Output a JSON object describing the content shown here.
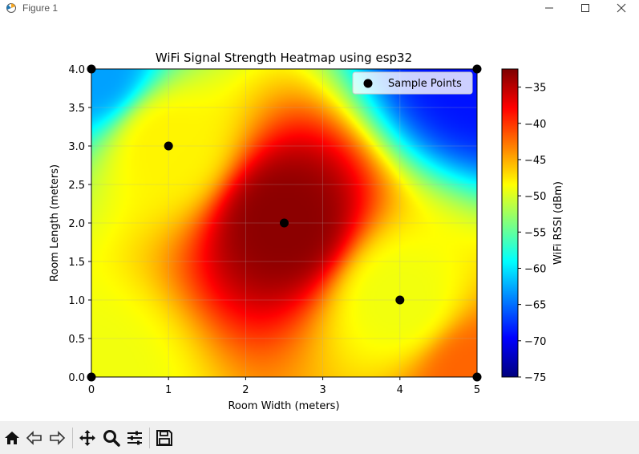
{
  "window": {
    "title": "Figure 1"
  },
  "toolbar": {
    "items": [
      "home-icon",
      "back-icon",
      "forward-icon",
      "pan-icon",
      "zoom-icon",
      "configure-subplots-icon",
      "save-icon"
    ]
  },
  "chart_data": {
    "type": "heatmap",
    "title": "WiFi Signal Strength Heatmap using esp32",
    "xlabel": "Room Width (meters)",
    "ylabel": "Room Length (meters)",
    "xlim": [
      0,
      5
    ],
    "ylim": [
      0,
      4
    ],
    "xticks": [
      "0",
      "1",
      "2",
      "3",
      "4",
      "5"
    ],
    "yticks": [
      "0.0",
      "0.5",
      "1.0",
      "1.5",
      "2.0",
      "2.5",
      "3.0",
      "3.5",
      "4.0"
    ],
    "colormap": "jet",
    "colorbar": {
      "label": "WiFi RSSI (dBm)",
      "range": [
        -75,
        -32.5
      ],
      "ticks": [
        "-75",
        "-70",
        "-65",
        "-60",
        "-55",
        "-50",
        "-45",
        "-40",
        "-35"
      ]
    },
    "legend": {
      "label": "Sample Points",
      "placement": "top-right"
    },
    "points": [
      {
        "x": 0,
        "y": 0,
        "rssi": -49
      },
      {
        "x": 0,
        "y": 4,
        "rssi": -63
      },
      {
        "x": 5,
        "y": 0,
        "rssi": -42
      },
      {
        "x": 5,
        "y": 4,
        "rssi": -69
      },
      {
        "x": 1,
        "y": 3,
        "rssi": -48
      },
      {
        "x": 2.5,
        "y": 2,
        "rssi": -33
      },
      {
        "x": 4,
        "y": 1,
        "rssi": -49
      }
    ],
    "grid": true
  }
}
